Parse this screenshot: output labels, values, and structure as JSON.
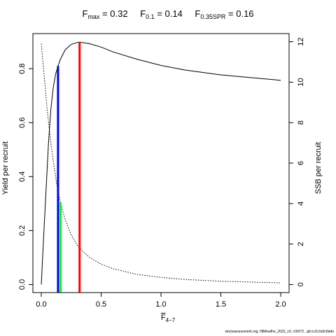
{
  "plot_title": {
    "items": [
      {
        "symbol": "F",
        "subscript": "max",
        "value": "0.32"
      },
      {
        "symbol": "F",
        "subscript": "0.1",
        "value": "0.14"
      },
      {
        "symbol": "F",
        "subscript": "0.35SPR",
        "value": "0.16"
      }
    ]
  },
  "x_label": {
    "symbol": "F",
    "subscript": "4−7"
  },
  "credit": "stockassessment.org, NBAsafhe_2022_v3, r16073 , git:cc2c2a0c6dde",
  "chart_data": {
    "type": "line",
    "x_range": [
      -0.07,
      2.07
    ],
    "y_left": {
      "label": "Yield per recruit",
      "range": [
        -0.03,
        0.93
      ],
      "ticks": [
        0.0,
        0.2,
        0.4,
        0.6,
        0.8
      ],
      "tick_labels": [
        "0.0",
        "0.2",
        "0.4",
        "0.6",
        "0.8"
      ]
    },
    "y_right": {
      "label": "SSB per recruit",
      "range": [
        -0.4,
        12.4
      ],
      "ticks": [
        0,
        2,
        4,
        6,
        8,
        10,
        12
      ],
      "tick_labels": [
        "0",
        "2",
        "4",
        "6",
        "8",
        "10",
        "12"
      ]
    },
    "x_ticks": [
      0.0,
      0.5,
      1.0,
      1.5,
      2.0
    ],
    "x_tick_labels": [
      "0.0",
      "0.5",
      "1.0",
      "1.5",
      "2.0"
    ],
    "series": [
      {
        "axis": "left",
        "style": "solid",
        "color": "#000000",
        "x": [
          0.0,
          0.02,
          0.04,
          0.06,
          0.08,
          0.1,
          0.12,
          0.14,
          0.16,
          0.2,
          0.25,
          0.3,
          0.32,
          0.4,
          0.5,
          0.6,
          0.8,
          1.0,
          1.2,
          1.5,
          1.8,
          2.0
        ],
        "y": [
          0.0,
          0.18,
          0.35,
          0.52,
          0.65,
          0.73,
          0.78,
          0.81,
          0.835,
          0.87,
          0.89,
          0.897,
          0.898,
          0.893,
          0.88,
          0.862,
          0.835,
          0.812,
          0.795,
          0.777,
          0.765,
          0.757
        ]
      },
      {
        "axis": "right",
        "style": "dotted",
        "color": "#000000",
        "x": [
          0.0,
          0.02,
          0.05,
          0.08,
          0.1,
          0.12,
          0.14,
          0.16,
          0.2,
          0.25,
          0.3,
          0.32,
          0.4,
          0.5,
          0.6,
          0.8,
          1.0,
          1.2,
          1.5,
          2.0
        ],
        "y": [
          11.9,
          10.6,
          8.6,
          7.0,
          6.1,
          5.3,
          4.6,
          4.05,
          3.2,
          2.45,
          1.95,
          1.8,
          1.35,
          1.0,
          0.78,
          0.5,
          0.35,
          0.25,
          0.16,
          0.08
        ]
      }
    ],
    "reference_lines": [
      {
        "name": "Fmax",
        "x": 0.32,
        "y": 0.898,
        "color": "#ff0000",
        "axis": "left"
      },
      {
        "name": "F0.1",
        "x": 0.14,
        "y": 0.81,
        "color": "#0000ff",
        "axis": "left"
      },
      {
        "name": "F0.35SPR",
        "x": 0.16,
        "y": 4.05,
        "color": "#00ff00",
        "axis": "right"
      }
    ],
    "grid": false,
    "legend": "none"
  }
}
